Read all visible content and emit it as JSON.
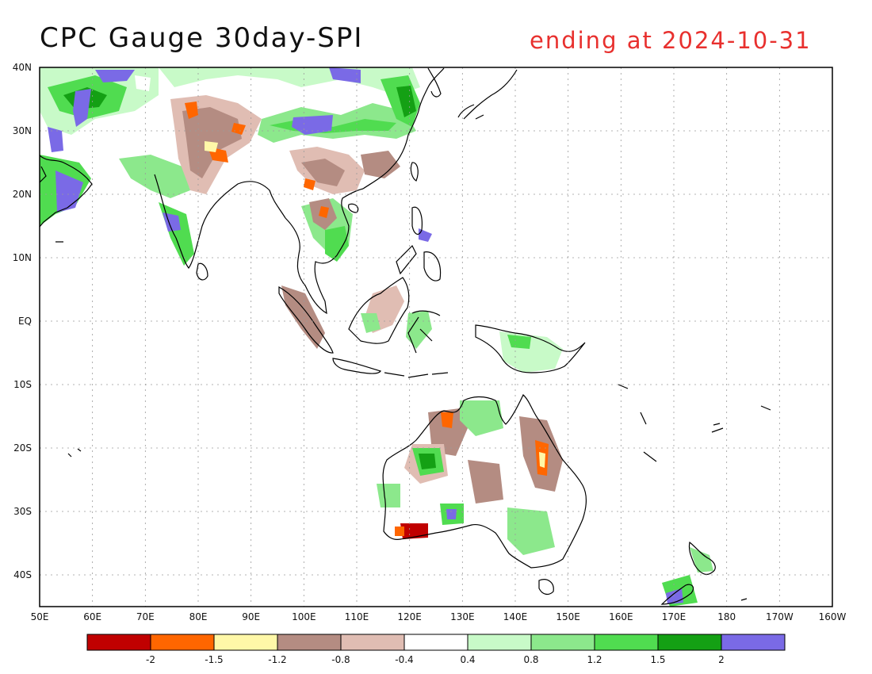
{
  "title": "CPC Gauge 30day-SPI",
  "subtitle": "ending at 2024-10-31",
  "map": {
    "lon_range": [
      50,
      200
    ],
    "lat_range": [
      -45,
      40
    ],
    "lat_labels": [
      {
        "lat": 40,
        "text": "40N"
      },
      {
        "lat": 30,
        "text": "30N"
      },
      {
        "lat": 20,
        "text": "20N"
      },
      {
        "lat": 10,
        "text": "10N"
      },
      {
        "lat": 0,
        "text": "EQ"
      },
      {
        "lat": -10,
        "text": "10S"
      },
      {
        "lat": -20,
        "text": "20S"
      },
      {
        "lat": -30,
        "text": "30S"
      },
      {
        "lat": -40,
        "text": "40S"
      }
    ],
    "lon_labels": [
      {
        "lon": 50,
        "text": "50E"
      },
      {
        "lon": 60,
        "text": "60E"
      },
      {
        "lon": 70,
        "text": "70E"
      },
      {
        "lon": 80,
        "text": "80E"
      },
      {
        "lon": 90,
        "text": "90E"
      },
      {
        "lon": 100,
        "text": "100E"
      },
      {
        "lon": 110,
        "text": "110E"
      },
      {
        "lon": 120,
        "text": "120E"
      },
      {
        "lon": 130,
        "text": "130E"
      },
      {
        "lon": 140,
        "text": "140E"
      },
      {
        "lon": 150,
        "text": "150E"
      },
      {
        "lon": 160,
        "text": "160E"
      },
      {
        "lon": 170,
        "text": "170E"
      },
      {
        "lon": 180,
        "text": "180"
      },
      {
        "lon": 190,
        "text": "170W"
      },
      {
        "lon": 200,
        "text": "160W"
      }
    ],
    "grid": true
  },
  "legend": {
    "colors": [
      "#c00000",
      "#ff6600",
      "#fff8a8",
      "#b48c82",
      "#e0bdb3",
      "#ffffff",
      "#c8fac8",
      "#8ce88c",
      "#50dc50",
      "#14a014",
      "#7a6ae6"
    ],
    "labels": [
      "-2",
      "-1.5",
      "-1.2",
      "-0.8",
      "-0.4",
      "0.4",
      "0.8",
      "1.2",
      "1.5",
      "2"
    ]
  },
  "colors": {
    "title": "#111111",
    "subtitle": "#e8302e",
    "grid": "#9a9a9a",
    "coast": "#000000",
    "frame": "#000000"
  }
}
